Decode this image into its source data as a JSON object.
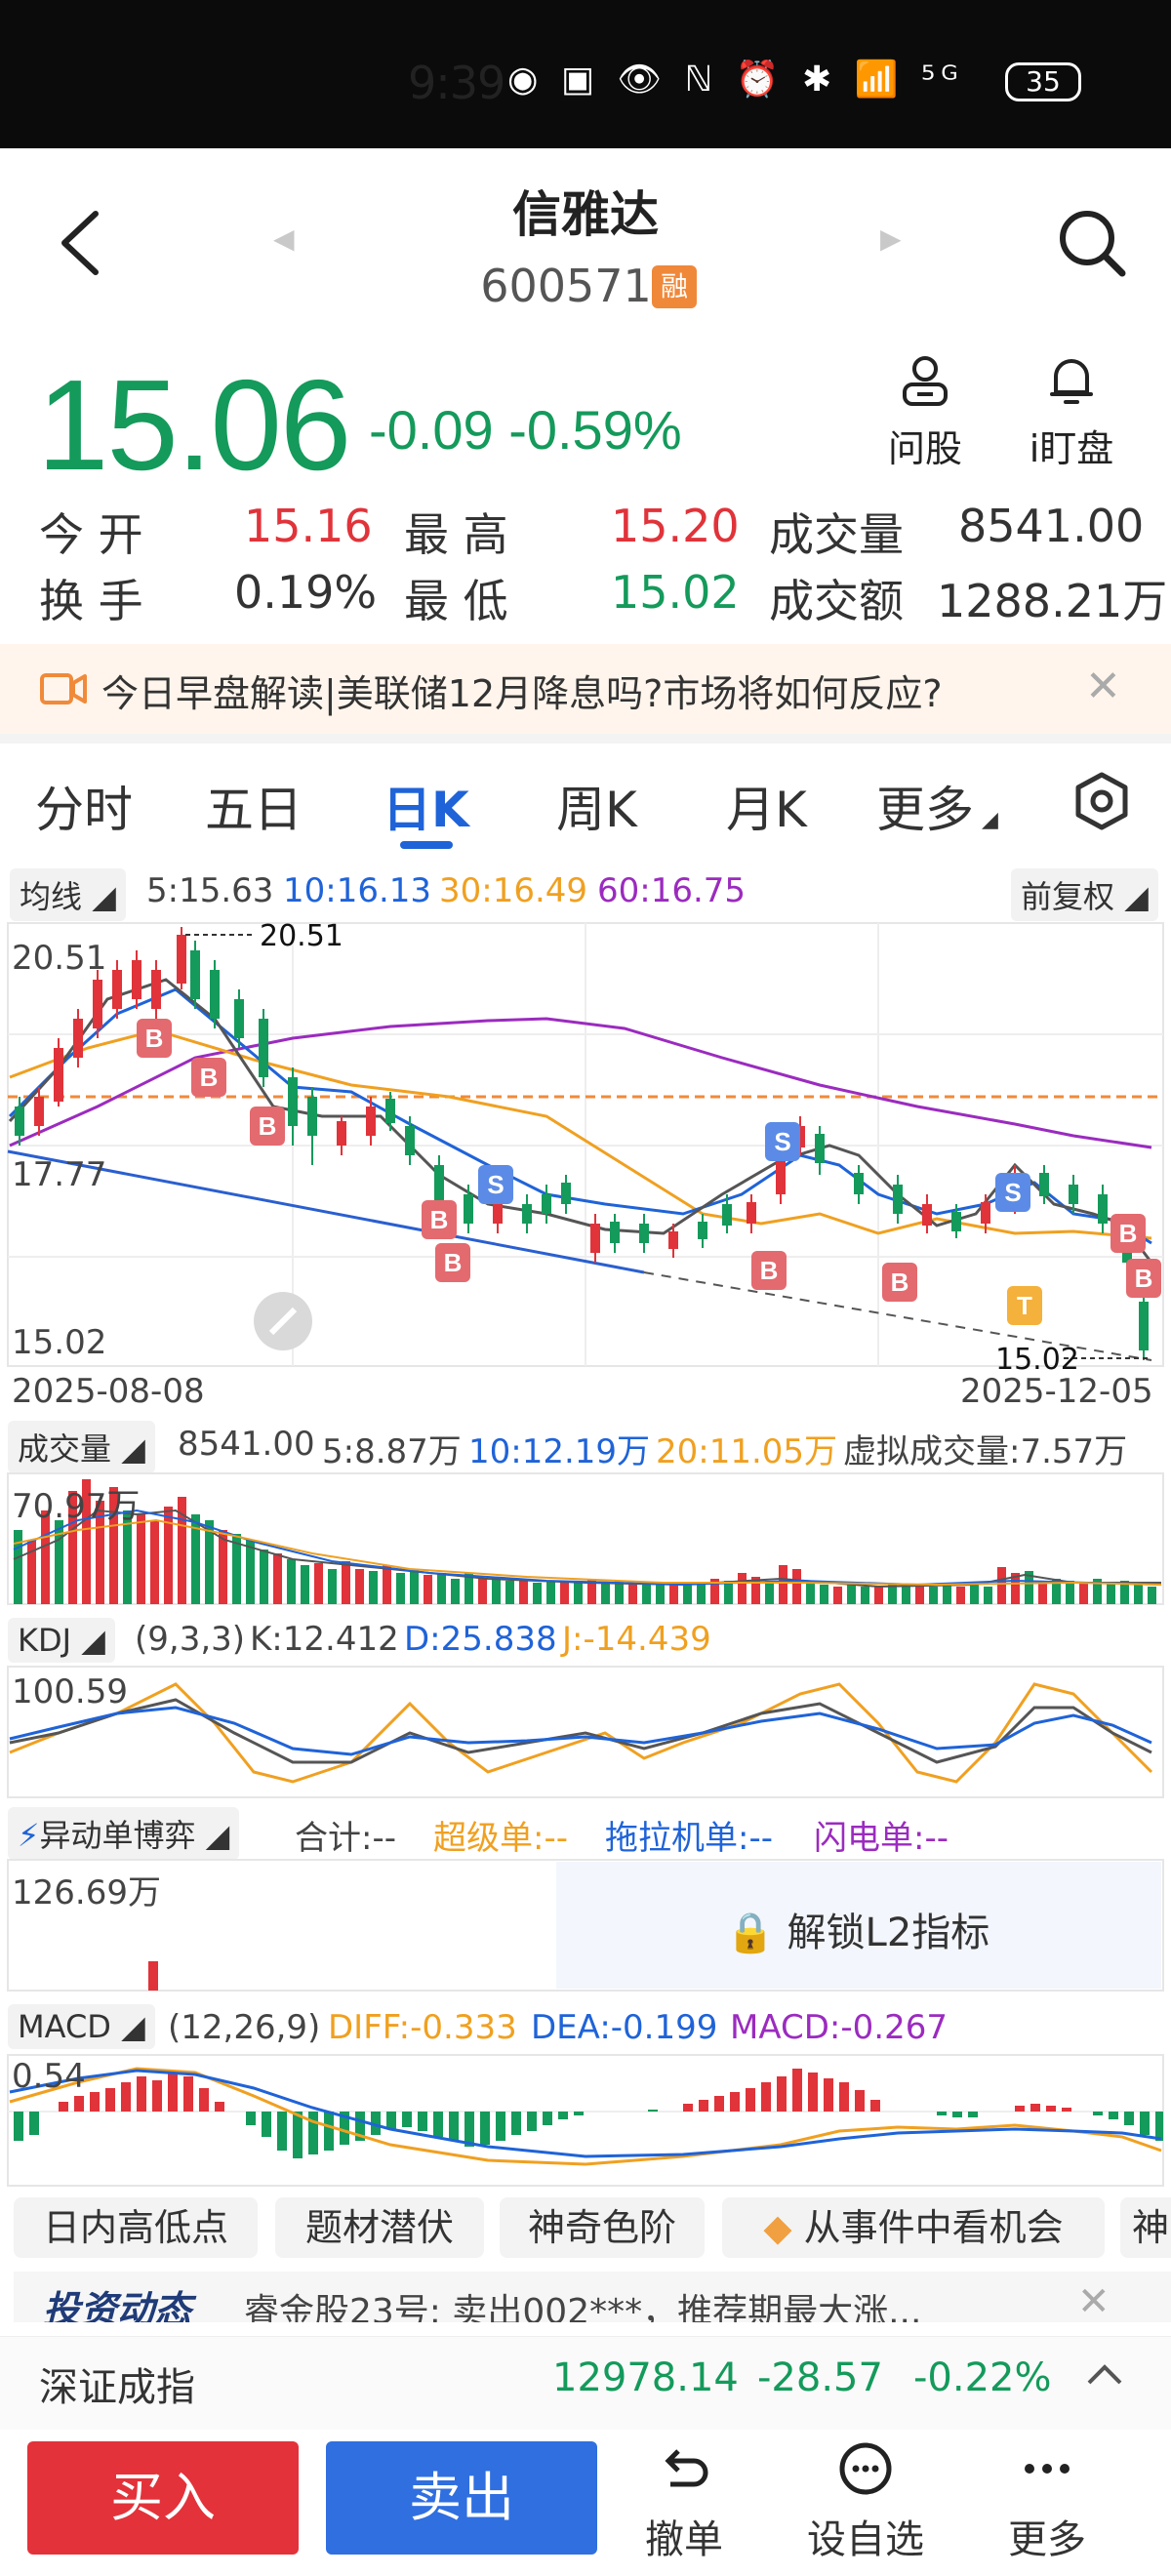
{
  "status_bar": {
    "time": "9:39",
    "icons": "◉ ▣ 👁 ℕ ⏰ ✱ 📶 ⁵ᴳ",
    "battery": "35"
  },
  "header": {
    "stock_name": "信雅达",
    "stock_code": "600571",
    "margin_badge": "融"
  },
  "quote": {
    "price": "15.06",
    "change": "-0.09",
    "change_pct": "-0.59%",
    "ask_label": "问股",
    "watch_label": "i盯盘",
    "open_label": "今  开",
    "open": "15.16",
    "high_label": "最  高",
    "high": "15.20",
    "volume_label": "成交量",
    "volume": "8541.00",
    "turnover_label": "换  手",
    "turnover": "0.19%",
    "low_label": "最  低",
    "low": "15.02",
    "amount_label": "成交额",
    "amount": "1288.21万"
  },
  "news_banner": {
    "text": "今日早盘解读|美联储12月降息吗?市场将如何反应?"
  },
  "tabs": [
    "分时",
    "五日",
    "日K",
    "周K",
    "月K",
    "更多"
  ],
  "ma_bar": {
    "selector": "均线",
    "ma5": "5:15.63",
    "ma10": "10:16.13",
    "ma30": "30:16.49",
    "ma60": "60:16.75",
    "adjust": "前复权"
  },
  "kline": {
    "y_top": "20.51",
    "y_mid": "17.77",
    "y_bottom": "15.02",
    "max_marker": "20.51",
    "min_marker": "15.02",
    "date_start": "2025-08-08",
    "date_end": "2025-12-05"
  },
  "volume_bar": {
    "selector": "成交量",
    "value": "8541.00",
    "ma5": "5:8.87万",
    "ma10": "10:12.19万",
    "ma20": "20:11.05万",
    "virtual": "虚拟成交量:7.57万",
    "y_top": "70.97万"
  },
  "kdj_bar": {
    "selector": "KDJ",
    "params": "(9,3,3)",
    "k": "K:12.412",
    "d": "D:25.838",
    "j": "J:-14.439",
    "y_top": "100.59"
  },
  "l2_bar": {
    "selector": "异动单博弈",
    "total": "合计:--",
    "super": "超级单:--",
    "tractor": "拖拉机单:--",
    "flash": "闪电单:--",
    "y_top": "126.69万",
    "unlock": "解锁L2指标"
  },
  "macd_bar": {
    "selector": "MACD",
    "params": "(12,26,9)",
    "diff": "DIFF:-0.333",
    "dea": "DEA:-0.199",
    "macd": "MACD:-0.267",
    "y_top": "0.54"
  },
  "chips": [
    "日内高低点",
    "题材潜伏",
    "神奇色阶",
    "从事件中看机会",
    "神"
  ],
  "ticker": {
    "brand": "投资动态",
    "text": "睿金股23号:  卖出002***，推荐期最大涨..."
  },
  "index_bar": {
    "name": "深证成指",
    "value": "12978.14",
    "change": "-28.57",
    "pct": "-0.22%"
  },
  "bottom_nav": {
    "buy": "买入",
    "sell": "卖出",
    "cancel": "撤单",
    "add_watch": "设自选",
    "more": "更多"
  },
  "colors": {
    "up": "#e0333a",
    "down": "#149a5b",
    "accent": "#1f63d8",
    "ma10": "#1f63d8",
    "ma30": "#f0a020",
    "ma60": "#9b2bbf"
  }
}
